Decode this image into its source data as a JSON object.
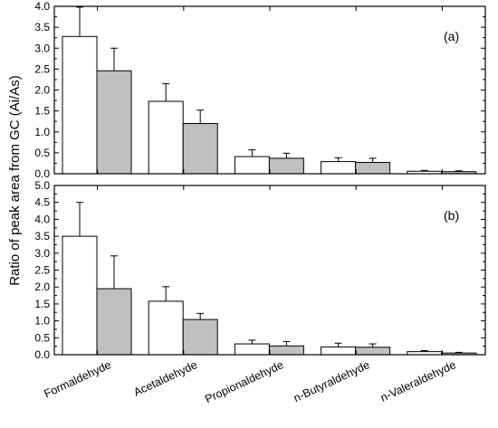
{
  "chart_data": {
    "type": "bar",
    "ylabel": "Ratio of peak area from GC (Ai/As)",
    "xlabel": "",
    "categories": [
      "Formaldehyde",
      "Acetaldehyde",
      "Propionaldehyde",
      "n-Butyraldehyde",
      "n-Valeraldehyde"
    ],
    "grid": false,
    "colors": {
      "series_1": "#ffffff",
      "series_2": "#c0c0c0",
      "edge": "#000000"
    },
    "panels": [
      {
        "label": "(a)",
        "ylim": [
          0,
          4.0
        ],
        "yticks": [
          "0.0",
          "0.5",
          "1.0",
          "1.5",
          "2.0",
          "2.5",
          "3.0",
          "3.5",
          "4.0"
        ],
        "series": [
          {
            "values": [
              3.28,
              1.73,
              0.41,
              0.29,
              0.06
            ],
            "errors": [
              0.7,
              0.42,
              0.16,
              0.09,
              0.02
            ]
          },
          {
            "values": [
              2.46,
              1.2,
              0.37,
              0.27,
              0.05
            ],
            "errors": [
              0.54,
              0.32,
              0.12,
              0.1,
              0.02
            ]
          }
        ]
      },
      {
        "label": "(b)",
        "ylim": [
          0,
          5.0
        ],
        "yticks": [
          "0.0",
          "0.5",
          "1.0",
          "1.5",
          "2.0",
          "2.5",
          "3.0",
          "3.5",
          "4.0",
          "4.5",
          "5.0"
        ],
        "series": [
          {
            "values": [
              3.5,
              1.58,
              0.32,
              0.23,
              0.09
            ],
            "errors": [
              1.0,
              0.43,
              0.11,
              0.11,
              0.03
            ]
          },
          {
            "values": [
              1.95,
              1.04,
              0.26,
              0.22,
              0.05
            ],
            "errors": [
              0.97,
              0.18,
              0.13,
              0.1,
              0.02
            ]
          }
        ]
      }
    ]
  }
}
